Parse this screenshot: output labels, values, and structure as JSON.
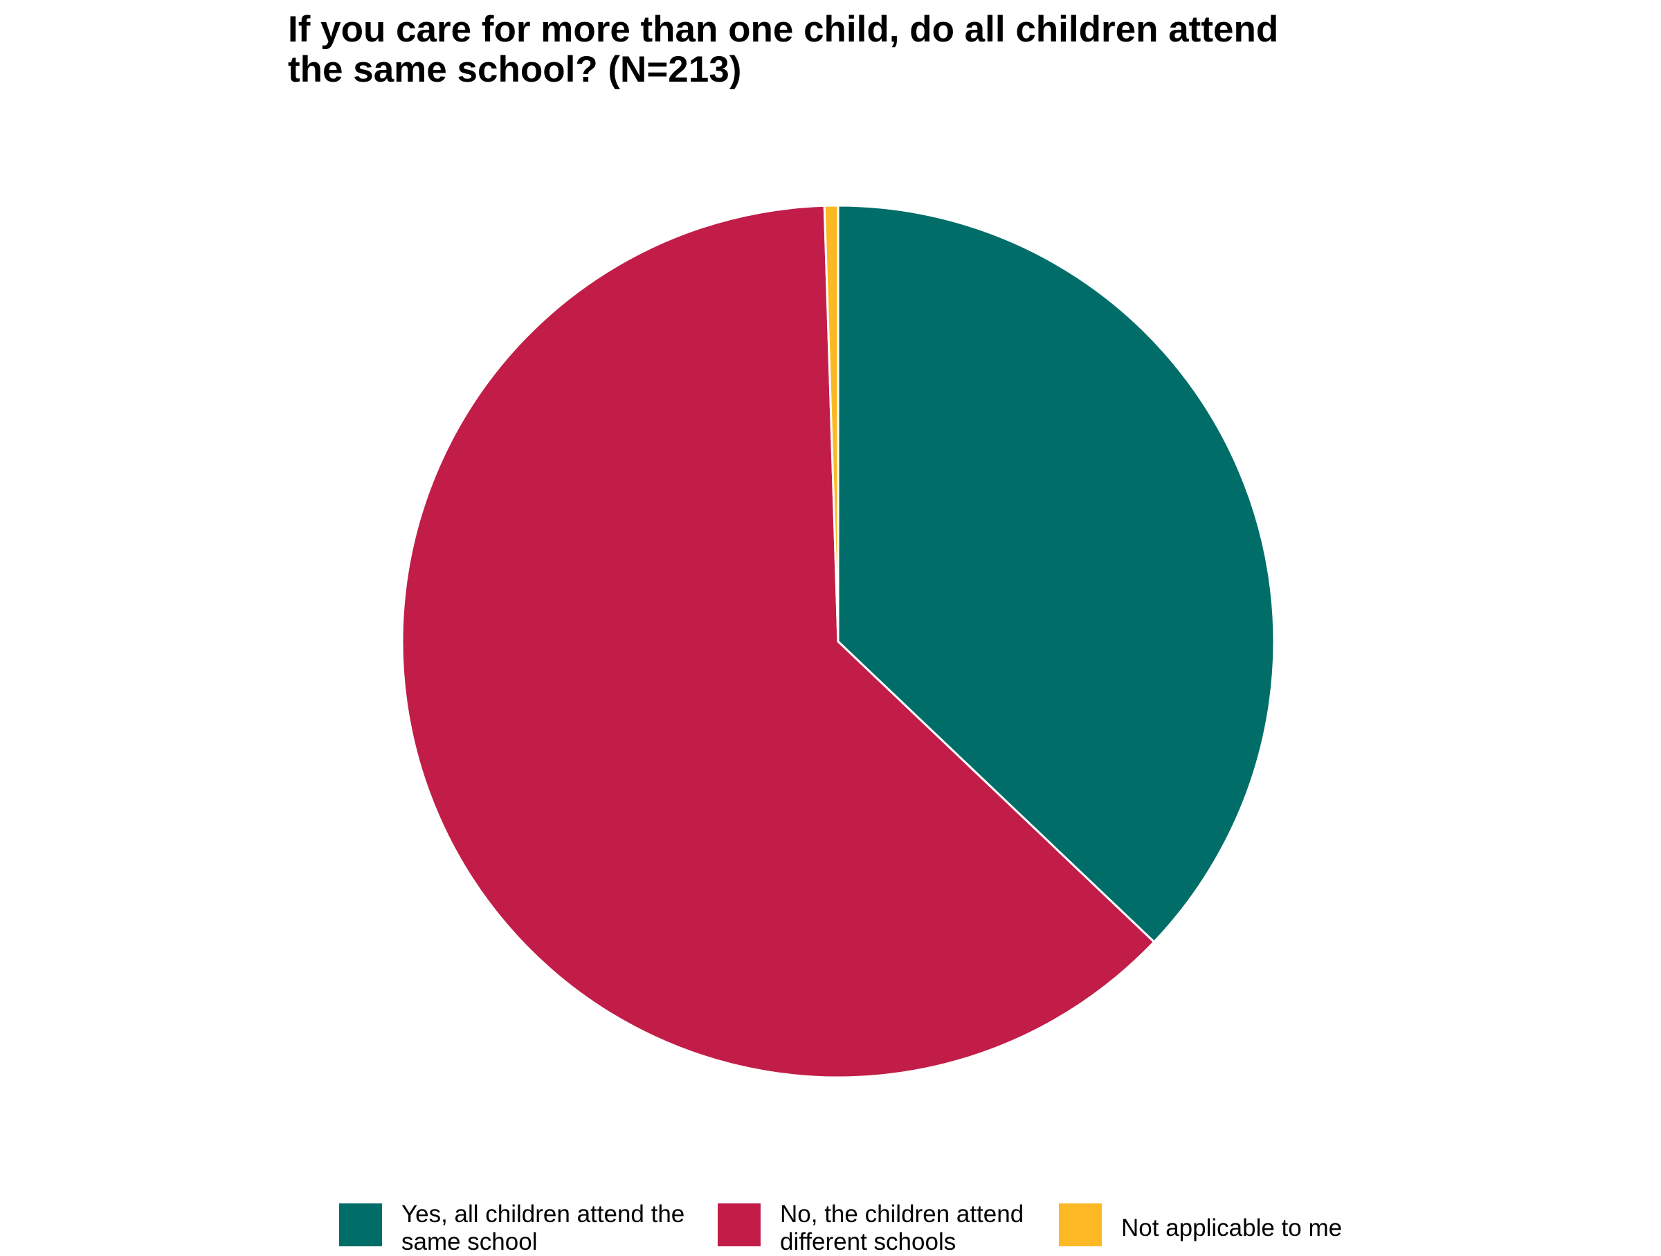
{
  "chart_data": {
    "type": "pie",
    "title_lines": [
      "If you care for more than one child, do all children attend",
      "the same school? (N=213)"
    ],
    "slices": [
      {
        "label_lines": [
          "Yes, all children attend the",
          "same school"
        ],
        "value": 37.1,
        "color": "#006D68"
      },
      {
        "label_lines": [
          "No, the children attend",
          "different schools"
        ],
        "value": 62.4,
        "color": "#C21D48"
      },
      {
        "label_lines": [
          "Not applicable to me"
        ],
        "value": 0.5,
        "color": "#FDB924"
      }
    ],
    "start_angle": "12 o'clock",
    "direction": "clockwise",
    "slice_border_color": "#FFFFFF",
    "legend_position": "bottom"
  }
}
